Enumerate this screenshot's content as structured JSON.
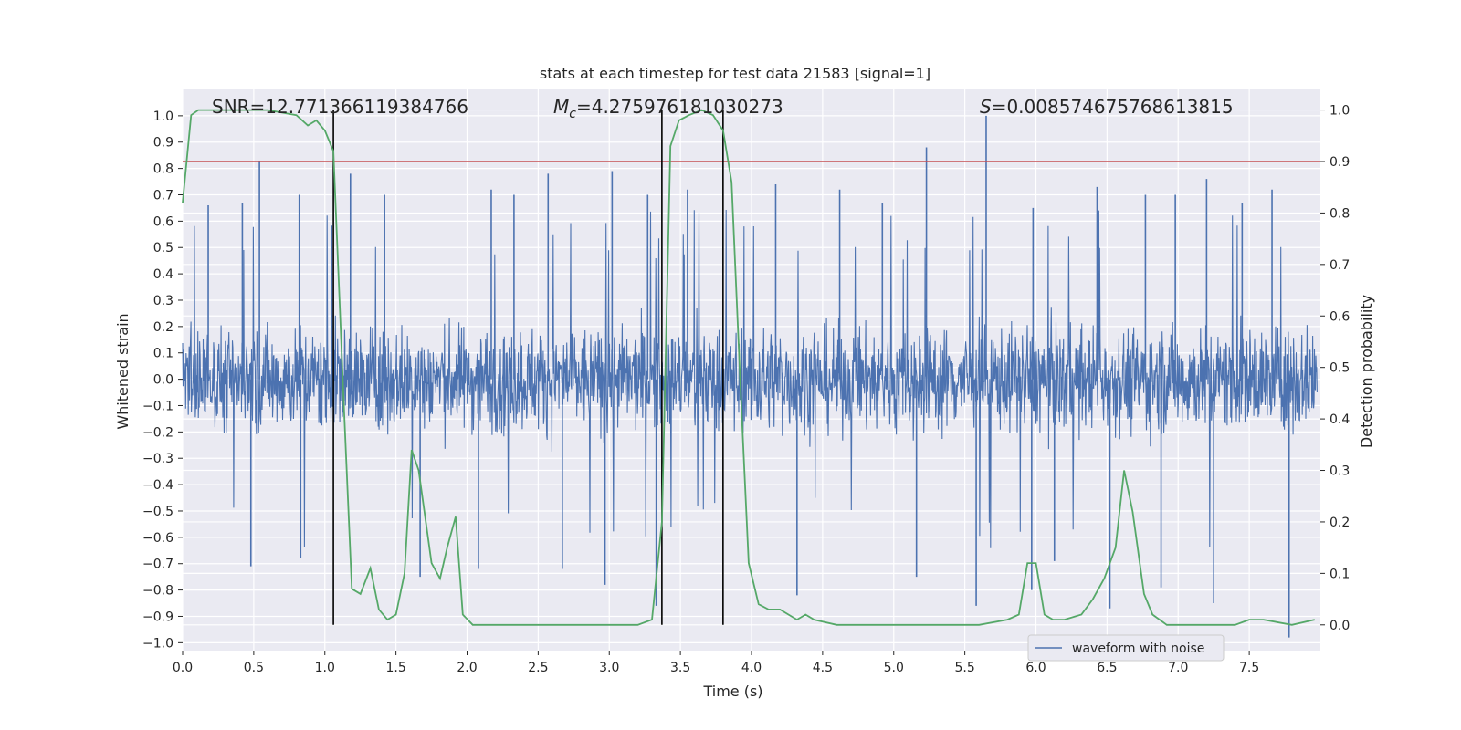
{
  "chart_data": {
    "type": "line",
    "title": "stats at each timestep for test data 21583 [signal=1]",
    "xlabel": "Time (s)",
    "ylabel_left": "Whitened strain",
    "ylabel_right": "Detection probability",
    "xlim": [
      0.0,
      8.0
    ],
    "ylim_left": [
      -1.03,
      1.1
    ],
    "ylim_right": [
      -0.05,
      1.04
    ],
    "x_ticks": [
      "0.0",
      "0.5",
      "1.0",
      "1.5",
      "2.0",
      "2.5",
      "3.0",
      "3.5",
      "4.0",
      "4.5",
      "5.0",
      "5.5",
      "6.0",
      "6.5",
      "7.0",
      "7.5"
    ],
    "x_tick_values": [
      0.0,
      0.5,
      1.0,
      1.5,
      2.0,
      2.5,
      3.0,
      3.5,
      4.0,
      4.5,
      5.0,
      5.5,
      6.0,
      6.5,
      7.0,
      7.5
    ],
    "y_left_ticks": [
      "1.0",
      "0.9",
      "0.8",
      "0.7",
      "0.6",
      "0.5",
      "0.4",
      "0.3",
      "0.2",
      "0.1",
      "0.0",
      "−0.1",
      "−0.2",
      "−0.3",
      "−0.4",
      "−0.5",
      "−0.6",
      "−0.7",
      "−0.8",
      "−0.9",
      "−1.0"
    ],
    "y_left_tick_values": [
      1.0,
      0.9,
      0.8,
      0.7,
      0.6,
      0.5,
      0.4,
      0.3,
      0.2,
      0.1,
      0.0,
      -0.1,
      -0.2,
      -0.3,
      -0.4,
      -0.5,
      -0.6,
      -0.7,
      -0.8,
      -0.9,
      -1.0
    ],
    "y_right_ticks": [
      "1.0",
      "0.9",
      "0.8",
      "0.7",
      "0.6",
      "0.5",
      "0.4",
      "0.3",
      "0.2",
      "0.1",
      "0.0"
    ],
    "y_right_tick_values": [
      1.0,
      0.9,
      0.8,
      0.7,
      0.6,
      0.5,
      0.4,
      0.3,
      0.2,
      0.1,
      0.0
    ],
    "annotations": {
      "snr": "SNR=12.771366119384766",
      "mc_symbol": "M",
      "mc_sub": "c",
      "mc_value": "=4.275976181030273",
      "s_symbol": "S",
      "s_value": "=0.008574675768613815"
    },
    "legend": {
      "label": "waveform with noise",
      "position": "lower-right"
    },
    "threshold": {
      "value": 0.9,
      "axis": "right",
      "color": "#c44e52"
    },
    "vertical_lines": [
      1.06,
      3.37,
      3.8
    ],
    "vertical_line_color": "#000000",
    "series": [
      {
        "name": "waveform with noise",
        "axis": "left",
        "color": "#4c72b0",
        "kind": "dense-noise",
        "spikes": [
          [
            0.54,
            0.83
          ],
          [
            0.18,
            0.66
          ],
          [
            0.42,
            0.67
          ],
          [
            0.82,
            0.7
          ],
          [
            1.18,
            0.78
          ],
          [
            1.42,
            0.7
          ],
          [
            2.17,
            0.72
          ],
          [
            2.33,
            0.7
          ],
          [
            2.57,
            0.78
          ],
          [
            3.02,
            0.79
          ],
          [
            3.27,
            0.7
          ],
          [
            3.55,
            0.72
          ],
          [
            4.17,
            0.74
          ],
          [
            4.62,
            0.72
          ],
          [
            4.92,
            0.67
          ],
          [
            5.23,
            0.88
          ],
          [
            5.65,
            1.0
          ],
          [
            5.98,
            0.65
          ],
          [
            6.43,
            0.73
          ],
          [
            6.77,
            0.7
          ],
          [
            6.98,
            0.7
          ],
          [
            7.2,
            0.76
          ],
          [
            7.45,
            0.67
          ],
          [
            7.66,
            0.72
          ],
          [
            0.48,
            -0.71
          ],
          [
            0.83,
            -0.68
          ],
          [
            1.67,
            -0.75
          ],
          [
            2.08,
            -0.72
          ],
          [
            2.67,
            -0.72
          ],
          [
            2.97,
            -0.78
          ],
          [
            3.33,
            -0.86
          ],
          [
            4.32,
            -0.82
          ],
          [
            5.16,
            -0.75
          ],
          [
            5.58,
            -0.86
          ],
          [
            5.97,
            -0.8
          ],
          [
            6.13,
            -0.69
          ],
          [
            6.52,
            -0.87
          ],
          [
            6.88,
            -0.79
          ],
          [
            7.25,
            -0.85
          ],
          [
            7.78,
            -0.98
          ]
        ]
      },
      {
        "name": "detection probability",
        "axis": "right",
        "color": "#55a868",
        "x": [
          0.0,
          0.06,
          0.11,
          0.2,
          0.4,
          0.6,
          0.8,
          0.88,
          0.94,
          1.0,
          1.06,
          1.13,
          1.19,
          1.25,
          1.32,
          1.38,
          1.44,
          1.5,
          1.56,
          1.61,
          1.66,
          1.75,
          1.81,
          1.86,
          1.92,
          1.97,
          2.04,
          2.1,
          2.2,
          2.4,
          2.6,
          2.8,
          3.0,
          3.2,
          3.3,
          3.37,
          3.43,
          3.49,
          3.56,
          3.65,
          3.73,
          3.8,
          3.86,
          3.92,
          3.98,
          4.05,
          4.12,
          4.2,
          4.32,
          4.38,
          4.44,
          4.6,
          4.8,
          5.0,
          5.4,
          5.6,
          5.8,
          5.88,
          5.94,
          6.0,
          6.06,
          6.12,
          6.2,
          6.32,
          6.4,
          6.48,
          6.56,
          6.62,
          6.68,
          6.76,
          6.82,
          6.92,
          7.0,
          7.2,
          7.4,
          7.5,
          7.6,
          7.8,
          7.96
        ],
        "y": [
          0.82,
          0.99,
          1.0,
          1.0,
          1.0,
          1.0,
          0.99,
          0.97,
          0.98,
          0.96,
          0.92,
          0.45,
          0.07,
          0.06,
          0.11,
          0.03,
          0.01,
          0.02,
          0.1,
          0.34,
          0.3,
          0.12,
          0.09,
          0.15,
          0.21,
          0.02,
          0.0,
          0.0,
          0.0,
          0.0,
          0.0,
          0.0,
          0.0,
          0.0,
          0.01,
          0.2,
          0.93,
          0.98,
          0.99,
          1.0,
          0.99,
          0.96,
          0.86,
          0.48,
          0.12,
          0.04,
          0.03,
          0.03,
          0.01,
          0.02,
          0.01,
          0.0,
          0.0,
          0.0,
          0.0,
          0.0,
          0.01,
          0.02,
          0.12,
          0.12,
          0.02,
          0.01,
          0.01,
          0.02,
          0.05,
          0.09,
          0.15,
          0.3,
          0.22,
          0.06,
          0.02,
          0.0,
          0.0,
          0.0,
          0.0,
          0.01,
          0.01,
          0.0,
          0.01
        ]
      }
    ],
    "grid": true,
    "background": "#eaeaf2"
  }
}
